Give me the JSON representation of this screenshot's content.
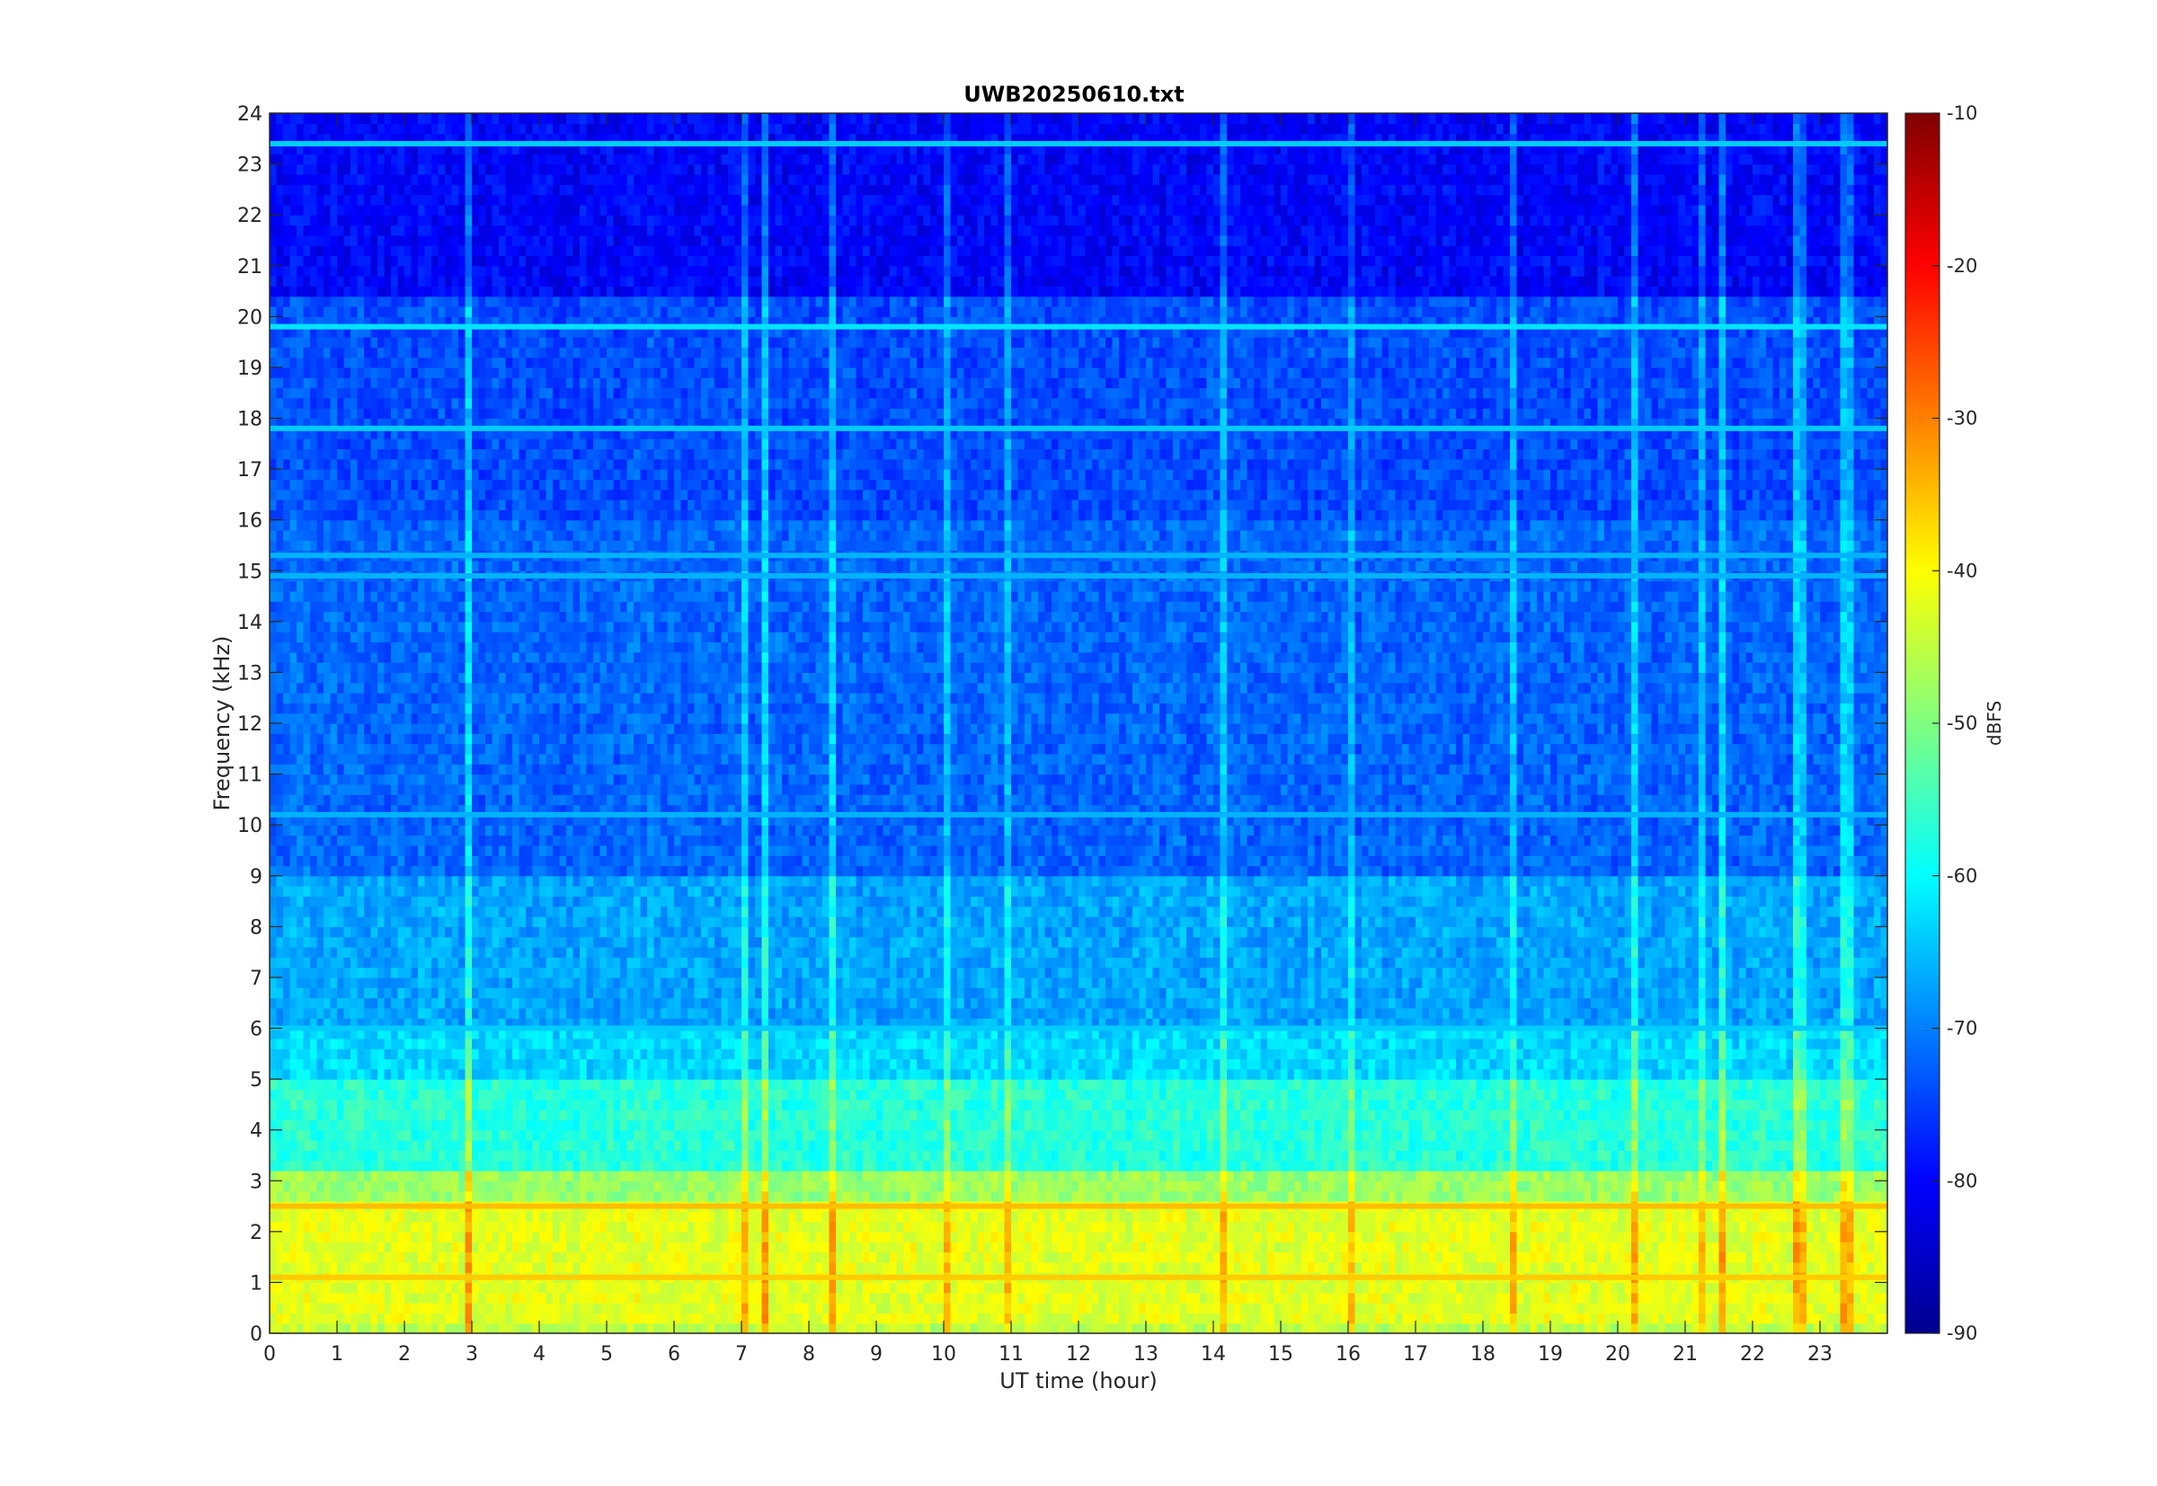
{
  "chart_data": {
    "type": "heatmap",
    "title": "UWB20250610.txt",
    "xlabel": "UT time (hour)",
    "ylabel": "Frequency (kHz)",
    "xlim": [
      0,
      24
    ],
    "ylim": [
      0,
      24
    ],
    "x_ticks": [
      0,
      1,
      2,
      3,
      4,
      5,
      6,
      7,
      8,
      9,
      10,
      11,
      12,
      13,
      14,
      15,
      16,
      17,
      18,
      19,
      20,
      21,
      22,
      23
    ],
    "y_ticks": [
      0,
      1,
      2,
      3,
      4,
      5,
      6,
      7,
      8,
      9,
      10,
      11,
      12,
      13,
      14,
      15,
      16,
      17,
      18,
      19,
      20,
      21,
      22,
      23,
      24
    ],
    "colorbar": {
      "label": "dBFS",
      "colormap": "jet",
      "range": [
        -90,
        -10
      ],
      "ticks": [
        -10,
        -20,
        -30,
        -40,
        -50,
        -60,
        -70,
        -80,
        -90
      ]
    },
    "grid": false,
    "intensity_by_frequency_band_dBFS": [
      {
        "f_khz": [
          0,
          0.3
        ],
        "level": -45
      },
      {
        "f_khz": [
          0.3,
          2.6
        ],
        "level": -42
      },
      {
        "f_khz": [
          2.6,
          3.2
        ],
        "level": -48
      },
      {
        "f_khz": [
          3.2,
          5.0
        ],
        "level": -57
      },
      {
        "f_khz": [
          5.0,
          6.0
        ],
        "level": -63
      },
      {
        "f_khz": [
          6.0,
          9.0
        ],
        "level": -67
      },
      {
        "f_khz": [
          9.0,
          16.0
        ],
        "level": -72
      },
      {
        "f_khz": [
          16.0,
          20.5
        ],
        "level": -74
      },
      {
        "f_khz": [
          20.5,
          24.0
        ],
        "level": -80
      }
    ],
    "persistent_lines_khz": [
      {
        "f": 19.8,
        "level": -62
      },
      {
        "f": 23.4,
        "level": -64
      },
      {
        "f": 17.8,
        "level": -64
      },
      {
        "f": 15.3,
        "level": -66
      },
      {
        "f": 14.9,
        "level": -66
      },
      {
        "f": 10.2,
        "level": -66
      },
      {
        "f": 6.0,
        "level": -64
      },
      {
        "f": 2.5,
        "level": -35
      },
      {
        "f": 1.1,
        "level": -36
      }
    ]
  }
}
